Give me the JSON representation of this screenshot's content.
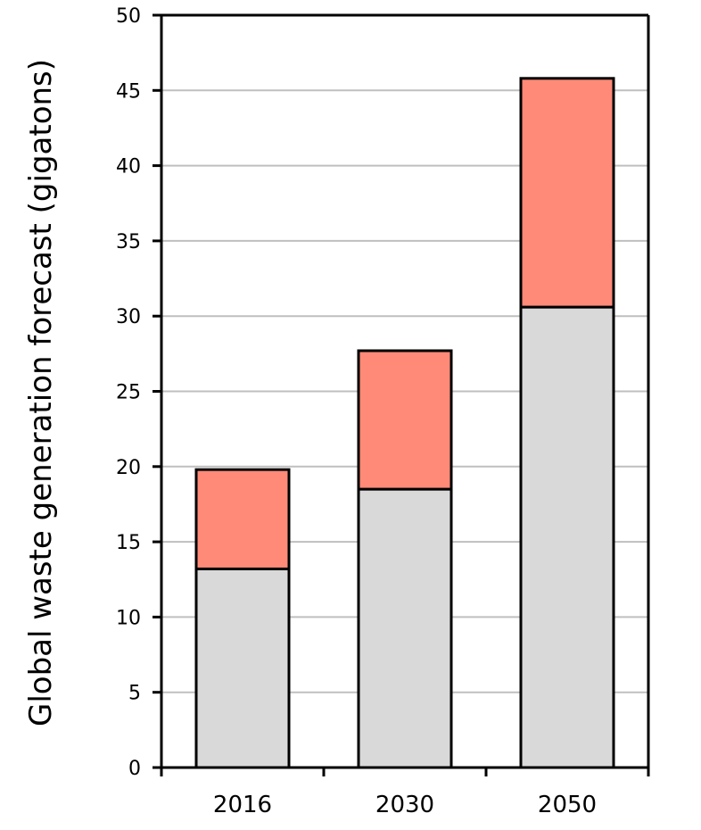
{
  "chart_data": {
    "type": "bar",
    "stacked": true,
    "title": "",
    "xlabel": "",
    "ylabel": "Global waste generation forecast (gigatons)",
    "categories": [
      "2016",
      "2030",
      "2050"
    ],
    "series": [
      {
        "values": [
          13.2,
          18.5,
          30.6
        ],
        "color": "#d9d9d9"
      },
      {
        "values": [
          6.6,
          9.2,
          15.2
        ],
        "color": "#ff8a78"
      }
    ],
    "ylim": [
      0,
      50
    ],
    "yticks": [
      0,
      5,
      10,
      15,
      20,
      25,
      30,
      35,
      40,
      45,
      50
    ],
    "grid": true,
    "gridline_color": "#bfbfbf",
    "outline_color": "#000000"
  }
}
